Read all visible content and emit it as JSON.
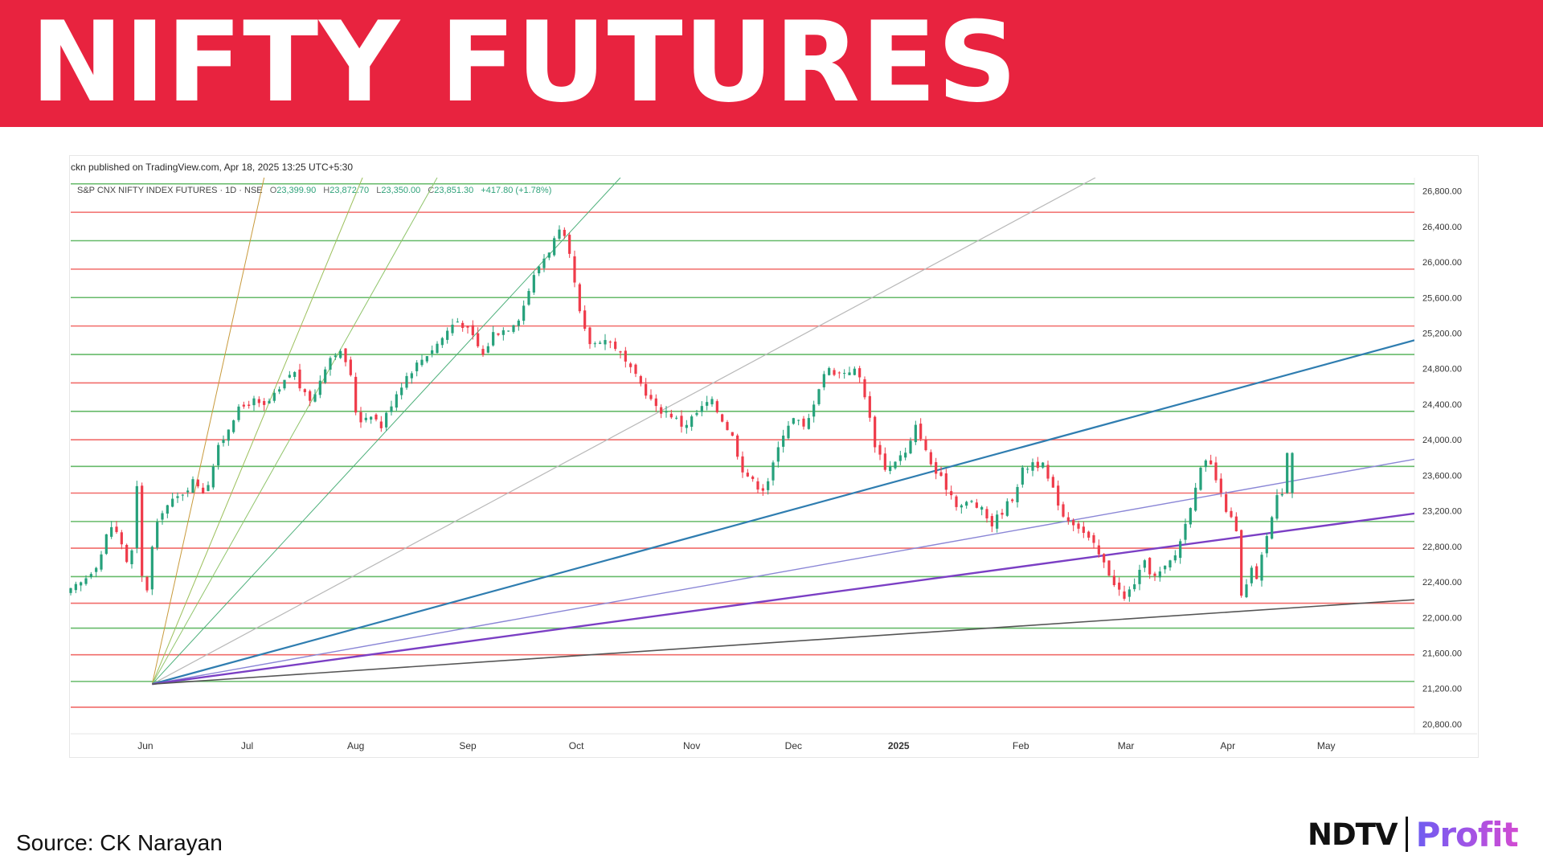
{
  "header": {
    "title": "NIFTY FUTURES"
  },
  "footer": {
    "source": "Source: CK Narayan",
    "logo_left": "NDTV",
    "logo_right": "Profit"
  },
  "colors": {
    "banner": "#e8233f",
    "candle_up": "#26a17b",
    "candle_down": "#ef3b4a",
    "level_green": "#4caf50",
    "level_red": "#ef5350",
    "fan_blue": "#2f7db0",
    "fan_purple": "#7b3fc4",
    "fan_lavender": "#8a86d6",
    "fan_dark": "#555555",
    "fan_grey": "#b8b8b8"
  },
  "chart_data": {
    "type": "candlestick",
    "published": "ckn published on TradingView.com, Apr 18, 2025 13:25 UTC+5:30",
    "legend": {
      "symbol": "S&P CNX NIFTY INDEX FUTURES · 1D · NSE",
      "o_label": "O",
      "o": "23,399.90",
      "h_label": "H",
      "h": "23,872.70",
      "l_label": "L",
      "l": "23,350.00",
      "c_label": "C",
      "c": "23,851.30",
      "change": "+417.80 (+1.78%)"
    },
    "y_ticks": [
      "26,800.00",
      "26,400.00",
      "26,000.00",
      "25,600.00",
      "25,200.00",
      "24,800.00",
      "24,400.00",
      "24,000.00",
      "23,600.00",
      "23,200.00",
      "22,800.00",
      "22,400.00",
      "22,000.00",
      "21,600.00",
      "21,200.00",
      "20,800.00"
    ],
    "ylim": [
      20700,
      26950
    ],
    "x_ticks": [
      {
        "label": "Jun",
        "t": 22,
        "bold": false
      },
      {
        "label": "Jul",
        "t": 52,
        "bold": false
      },
      {
        "label": "Aug",
        "t": 84,
        "bold": false
      },
      {
        "label": "Sep",
        "t": 117,
        "bold": false
      },
      {
        "label": "Oct",
        "t": 149,
        "bold": false
      },
      {
        "label": "Nov",
        "t": 183,
        "bold": false
      },
      {
        "label": "Dec",
        "t": 213,
        "bold": false
      },
      {
        "label": "2025",
        "t": 244,
        "bold": true
      },
      {
        "label": "Feb",
        "t": 280,
        "bold": false
      },
      {
        "label": "Mar",
        "t": 311,
        "bold": false
      },
      {
        "label": "Apr",
        "t": 341,
        "bold": false
      },
      {
        "label": "May",
        "t": 370,
        "bold": false
      }
    ],
    "x_range": [
      0,
      396
    ],
    "levels": [
      {
        "price": 26880,
        "color": "green"
      },
      {
        "price": 26560,
        "color": "red"
      },
      {
        "price": 26240,
        "color": "green"
      },
      {
        "price": 25920,
        "color": "red"
      },
      {
        "price": 25600,
        "color": "green"
      },
      {
        "price": 25280,
        "color": "red"
      },
      {
        "price": 24960,
        "color": "green"
      },
      {
        "price": 24640,
        "color": "red"
      },
      {
        "price": 24320,
        "color": "green"
      },
      {
        "price": 24000,
        "color": "red"
      },
      {
        "price": 23700,
        "color": "green"
      },
      {
        "price": 23400,
        "color": "red"
      },
      {
        "price": 23080,
        "color": "green"
      },
      {
        "price": 22780,
        "color": "red"
      },
      {
        "price": 22460,
        "color": "green"
      },
      {
        "price": 22160,
        "color": "red"
      },
      {
        "price": 21880,
        "color": "green"
      },
      {
        "price": 21580,
        "color": "red"
      },
      {
        "price": 21280,
        "color": "green"
      },
      {
        "price": 20990,
        "color": "red"
      }
    ],
    "fan_origin": {
      "t": 24,
      "price": 21250
    },
    "fan_lines": [
      {
        "t": 57,
        "price": 26950,
        "color": "#c89a3c",
        "width": 1
      },
      {
        "t": 86,
        "price": 26950,
        "color": "#9bbf5a",
        "width": 1
      },
      {
        "t": 108,
        "price": 26950,
        "color": "#8fc46a",
        "width": 1
      },
      {
        "t": 162,
        "price": 26950,
        "color": "#4caf7a",
        "width": 1
      },
      {
        "t": 302,
        "price": 26950,
        "color": "#b8b8b8",
        "width": 1.2
      },
      {
        "t": 396,
        "price": 25120,
        "color": "#2f7db0",
        "width": 2.2
      },
      {
        "t": 396,
        "price": 23780,
        "color": "#8a86d6",
        "width": 1.4
      },
      {
        "t": 396,
        "price": 23170,
        "color": "#7b3fc4",
        "width": 2.4
      },
      {
        "t": 396,
        "price": 22200,
        "color": "#555555",
        "width": 1.6
      }
    ],
    "anchors": [
      [
        0,
        22250
      ],
      [
        5,
        22400
      ],
      [
        10,
        22650
      ],
      [
        13,
        23050
      ],
      [
        16,
        22900
      ],
      [
        19,
        22500
      ],
      [
        21,
        23450
      ],
      [
        22,
        22950
      ],
      [
        23,
        21950
      ],
      [
        25,
        22700
      ],
      [
        28,
        23200
      ],
      [
        33,
        23350
      ],
      [
        38,
        23550
      ],
      [
        41,
        23400
      ],
      [
        45,
        23900
      ],
      [
        50,
        24300
      ],
      [
        55,
        24450
      ],
      [
        58,
        24350
      ],
      [
        63,
        24550
      ],
      [
        67,
        24800
      ],
      [
        70,
        24500
      ],
      [
        73,
        24450
      ],
      [
        76,
        24800
      ],
      [
        79,
        25000
      ],
      [
        82,
        24950
      ],
      [
        84,
        24700
      ],
      [
        86,
        24200
      ],
      [
        90,
        24300
      ],
      [
        93,
        24150
      ],
      [
        97,
        24500
      ],
      [
        101,
        24750
      ],
      [
        106,
        24950
      ],
      [
        110,
        25100
      ],
      [
        114,
        25300
      ],
      [
        116,
        25350
      ],
      [
        120,
        25150
      ],
      [
        123,
        24950
      ],
      [
        126,
        25200
      ],
      [
        130,
        25250
      ],
      [
        134,
        25400
      ],
      [
        137,
        25750
      ],
      [
        140,
        26000
      ],
      [
        142,
        26100
      ],
      [
        144,
        26250
      ],
      [
        146,
        26350
      ],
      [
        148,
        26150
      ],
      [
        150,
        25750
      ],
      [
        152,
        25300
      ],
      [
        155,
        25050
      ],
      [
        158,
        25150
      ],
      [
        162,
        25050
      ],
      [
        166,
        24800
      ],
      [
        170,
        24600
      ],
      [
        174,
        24350
      ],
      [
        178,
        24300
      ],
      [
        182,
        24150
      ],
      [
        186,
        24300
      ],
      [
        190,
        24450
      ],
      [
        194,
        24200
      ],
      [
        197,
        24000
      ],
      [
        199,
        23700
      ],
      [
        203,
        23500
      ],
      [
        206,
        23450
      ],
      [
        208,
        23650
      ],
      [
        212,
        24150
      ],
      [
        215,
        24250
      ],
      [
        218,
        24100
      ],
      [
        221,
        24500
      ],
      [
        224,
        24800
      ],
      [
        228,
        24750
      ],
      [
        232,
        24800
      ],
      [
        234,
        24700
      ],
      [
        236,
        24450
      ],
      [
        238,
        24000
      ],
      [
        242,
        23650
      ],
      [
        245,
        23800
      ],
      [
        248,
        23850
      ],
      [
        251,
        24200
      ],
      [
        253,
        23900
      ],
      [
        256,
        23650
      ],
      [
        260,
        23450
      ],
      [
        263,
        23250
      ],
      [
        267,
        23300
      ],
      [
        270,
        23200
      ],
      [
        273,
        23050
      ],
      [
        276,
        23200
      ],
      [
        279,
        23350
      ],
      [
        282,
        23650
      ],
      [
        285,
        23750
      ],
      [
        288,
        23700
      ],
      [
        290,
        23500
      ],
      [
        292,
        23350
      ],
      [
        294,
        23150
      ],
      [
        298,
        23050
      ],
      [
        300,
        22950
      ],
      [
        303,
        22800
      ],
      [
        306,
        22600
      ],
      [
        309,
        22400
      ],
      [
        312,
        22200
      ],
      [
        315,
        22400
      ],
      [
        318,
        22600
      ],
      [
        321,
        22450
      ],
      [
        324,
        22550
      ],
      [
        327,
        22700
      ],
      [
        330,
        23050
      ],
      [
        333,
        23500
      ],
      [
        335,
        23700
      ],
      [
        337,
        23750
      ],
      [
        339,
        23550
      ],
      [
        341,
        23300
      ],
      [
        343,
        23150
      ],
      [
        345,
        22950
      ],
      [
        346,
        22300
      ],
      [
        347,
        22150
      ],
      [
        349,
        22550
      ],
      [
        351,
        22450
      ],
      [
        353,
        22750
      ],
      [
        354,
        22950
      ],
      [
        355,
        23050
      ],
      [
        357,
        23350
      ],
      [
        359,
        23450
      ],
      [
        360,
        23851
      ]
    ]
  }
}
